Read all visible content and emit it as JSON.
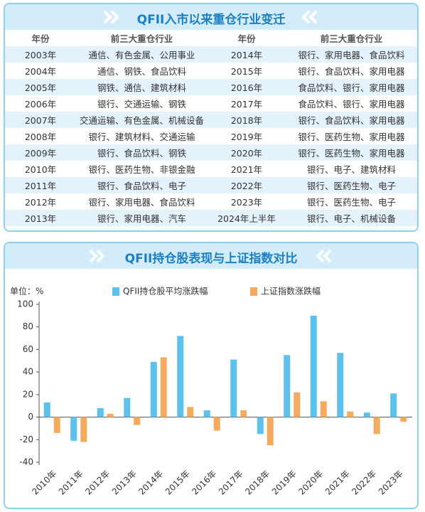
{
  "table": {
    "title": "QFII入市以来重仓行业变迁",
    "headers": [
      "年份",
      "前三大重仓行业",
      "年份",
      "前三大重仓行业"
    ],
    "rows": [
      [
        "2003年",
        "通信、有色金属、公用事业",
        "2014年",
        "银行、家用电器、食品饮料"
      ],
      [
        "2004年",
        "通信、钢铁、食品饮料",
        "2015年",
        "银行、食品饮料、家用电器"
      ],
      [
        "2005年",
        "钢铁、通信、建筑材料",
        "2016年",
        "食品饮料、银行、家用电器"
      ],
      [
        "2006年",
        "银行、交通运输、钢铁",
        "2017年",
        "食品饮料、银行、家用电器"
      ],
      [
        "2007年",
        "交通运输、有色金属、机械设备",
        "2018年",
        "银行、食品饮料、家用电器"
      ],
      [
        "2008年",
        "银行、建筑材料、交通运输",
        "2019年",
        "银行、医药生物、家用电器"
      ],
      [
        "2009年",
        "银行、食品饮料、钢铁",
        "2020年",
        "银行、医药生物、家用电器"
      ],
      [
        "2010年",
        "银行、医药生物、非银金融",
        "2021年",
        "银行、电子、建筑材料"
      ],
      [
        "2011年",
        "银行、食品饮料、电子",
        "2022年",
        "银行、医药生物、电子"
      ],
      [
        "2012年",
        "银行、家用电器、食品饮料",
        "2023年",
        "银行、医药生物、电子"
      ],
      [
        "2013年",
        "银行、家用电器、汽车",
        "2024年上半年",
        "银行、电子、机械设备"
      ]
    ]
  },
  "chart_data": {
    "type": "bar",
    "title": "QFII持仓股表现与上证指数对比",
    "unit_label": "单位：%",
    "categories": [
      "2010年",
      "2011年",
      "2012年",
      "2013年",
      "2014年",
      "2015年",
      "2016年",
      "2017年",
      "2018年",
      "2019年",
      "2020年",
      "2021年",
      "2022年",
      "2023年"
    ],
    "series": [
      {
        "name": "QFII持仓股平均涨跌幅",
        "color": "#5cc1ec",
        "values": [
          13,
          -21,
          8,
          17,
          49,
          72,
          6,
          51,
          -15,
          55,
          90,
          57,
          4,
          21
        ]
      },
      {
        "name": "上证指数涨跌幅",
        "color": "#f5ab5e",
        "values": [
          -14,
          -22,
          3,
          -7,
          53,
          9,
          -12,
          6,
          -25,
          22,
          14,
          5,
          -15,
          -4
        ]
      }
    ],
    "ylim": [
      -40,
      100
    ],
    "yticks": [
      -40,
      -20,
      0,
      20,
      40,
      60,
      80,
      100
    ],
    "grid": false
  }
}
